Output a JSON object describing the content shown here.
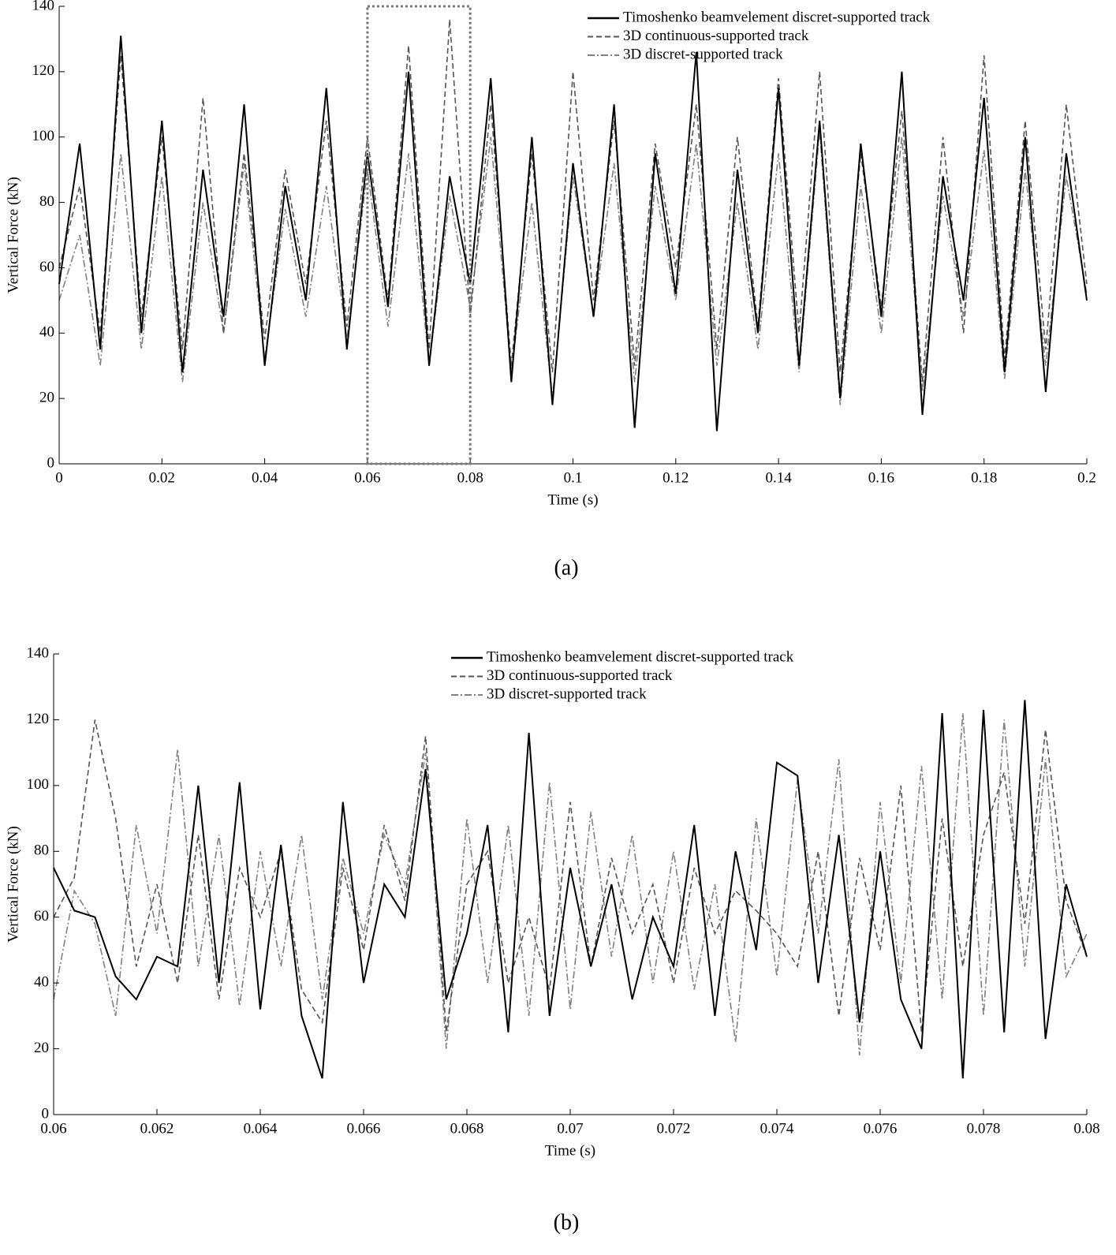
{
  "chart_data": [
    {
      "type": "line",
      "caption": "(a)",
      "xlabel": "Time (s)",
      "ylabel": "Vertical Force (kN)",
      "x": [
        0,
        0.004,
        0.008,
        0.012,
        0.016,
        0.02,
        0.024,
        0.028,
        0.032,
        0.036,
        0.04,
        0.044,
        0.048,
        0.052,
        0.056,
        0.06,
        0.064,
        0.068,
        0.072,
        0.076,
        0.08,
        0.084,
        0.088,
        0.092,
        0.096,
        0.1,
        0.104,
        0.108,
        0.112,
        0.116,
        0.12,
        0.124,
        0.128,
        0.132,
        0.136,
        0.14,
        0.144,
        0.148,
        0.152,
        0.156,
        0.16,
        0.164,
        0.168,
        0.172,
        0.176,
        0.18,
        0.184,
        0.188,
        0.192,
        0.196,
        0.2
      ],
      "xlim": [
        0,
        0.2
      ],
      "xticks": [
        0,
        0.02,
        0.04,
        0.06,
        0.08,
        0.1,
        0.12,
        0.14,
        0.16,
        0.18,
        0.2
      ],
      "ylim": [
        0,
        140
      ],
      "yticks": [
        0,
        20,
        40,
        60,
        80,
        100,
        120,
        140
      ],
      "series": [
        {
          "name": "Timoshenko beamvelement discret-supported track",
          "color": "#000000",
          "linestyle": "solid",
          "values": [
            55,
            98,
            35,
            131,
            40,
            105,
            28,
            90,
            45,
            110,
            30,
            85,
            50,
            115,
            35,
            95,
            48,
            120,
            30,
            88,
            55,
            118,
            25,
            100,
            18,
            92,
            45,
            110,
            11,
            95,
            52,
            126,
            10,
            90,
            40,
            115,
            30,
            105,
            20,
            98,
            45,
            120,
            15,
            88,
            50,
            112,
            28,
            100,
            22,
            95,
            50
          ]
        },
        {
          "name": "3D continuous-supported track",
          "color": "#555555",
          "linestyle": "dashed",
          "values": [
            60,
            85,
            40,
            125,
            45,
            100,
            35,
            112,
            40,
            95,
            38,
            90,
            55,
            105,
            42,
            100,
            50,
            128,
            35,
            136,
            45,
            110,
            30,
            95,
            28,
            120,
            50,
            105,
            30,
            98,
            60,
            110,
            35,
            100,
            42,
            118,
            40,
            120,
            28,
            95,
            48,
            108,
            25,
            100,
            40,
            125,
            32,
            105,
            35,
            110,
            55
          ]
        },
        {
          "name": "3D discret-supported track",
          "color": "#808080",
          "linestyle": "dashdot",
          "values": [
            50,
            70,
            30,
            95,
            35,
            88,
            25,
            80,
            40,
            92,
            32,
            78,
            45,
            85,
            38,
            90,
            42,
            95,
            30,
            82,
            48,
            100,
            28,
            80,
            20,
            88,
            45,
            92,
            25,
            85,
            50,
            98,
            30,
            80,
            35,
            95,
            28,
            102,
            18,
            85,
            40,
            100,
            22,
            82,
            45,
            96,
            26,
            90,
            30,
            88,
            52
          ]
        }
      ]
    },
    {
      "type": "line",
      "caption": "(b)",
      "xlabel": "Time (s)",
      "ylabel": "Vertical Force (kN)",
      "x": [
        0.06,
        0.0604,
        0.0608,
        0.0612,
        0.0616,
        0.062,
        0.0624,
        0.0628,
        0.0632,
        0.0636,
        0.064,
        0.0644,
        0.0648,
        0.0652,
        0.0656,
        0.066,
        0.0664,
        0.0668,
        0.0672,
        0.0676,
        0.068,
        0.0684,
        0.0688,
        0.0692,
        0.0696,
        0.07,
        0.0704,
        0.0708,
        0.0712,
        0.0716,
        0.072,
        0.0724,
        0.0728,
        0.0732,
        0.0736,
        0.074,
        0.0744,
        0.0748,
        0.0752,
        0.0756,
        0.076,
        0.0764,
        0.0768,
        0.0772,
        0.0776,
        0.078,
        0.0784,
        0.0788,
        0.0792,
        0.0796,
        0.08
      ],
      "xlim": [
        0.06,
        0.08
      ],
      "xticks": [
        0.06,
        0.062,
        0.064,
        0.066,
        0.068,
        0.07,
        0.072,
        0.074,
        0.076,
        0.078,
        0.08
      ],
      "ylim": [
        0,
        140
      ],
      "yticks": [
        0,
        20,
        40,
        60,
        80,
        100,
        120,
        140
      ],
      "series": [
        {
          "name": "Timoshenko beamvelement discret-supported track",
          "color": "#000000",
          "linestyle": "solid",
          "values": [
            75,
            62,
            60,
            42,
            35,
            48,
            45,
            100,
            40,
            101,
            32,
            82,
            30,
            11,
            95,
            40,
            70,
            60,
            105,
            35,
            55,
            88,
            25,
            116,
            30,
            75,
            45,
            70,
            35,
            60,
            45,
            88,
            30,
            80,
            50,
            107,
            103,
            40,
            85,
            28,
            80,
            35,
            20,
            122,
            11,
            123,
            25,
            126,
            23,
            70,
            48
          ]
        },
        {
          "name": "3D continuous-supported track",
          "color": "#555555",
          "linestyle": "dashed",
          "values": [
            60,
            72,
            120,
            90,
            45,
            70,
            40,
            85,
            35,
            75,
            60,
            80,
            38,
            28,
            75,
            50,
            88,
            65,
            115,
            25,
            70,
            80,
            40,
            60,
            38,
            95,
            45,
            78,
            55,
            70,
            40,
            75,
            55,
            68,
            62,
            55,
            45,
            80,
            30,
            78,
            50,
            100,
            25,
            90,
            45,
            85,
            104,
            58,
            117,
            65,
            48
          ]
        },
        {
          "name": "3D discret-supported track",
          "color": "#808080",
          "linestyle": "dashdot",
          "values": [
            35,
            68,
            58,
            30,
            88,
            55,
            111,
            45,
            85,
            33,
            80,
            45,
            85,
            35,
            78,
            55,
            85,
            70,
            110,
            20,
            90,
            40,
            88,
            30,
            101,
            32,
            92,
            48,
            85,
            40,
            80,
            38,
            70,
            22,
            90,
            42,
            102,
            55,
            108,
            18,
            95,
            40,
            106,
            35,
            122,
            30,
            120,
            45,
            108,
            42,
            55
          ]
        }
      ]
    }
  ]
}
